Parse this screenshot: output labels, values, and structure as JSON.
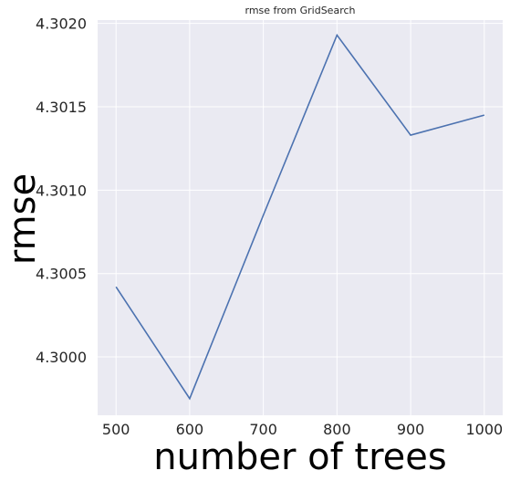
{
  "chart_data": {
    "type": "line",
    "title": "rmse from GridSearch",
    "xlabel": "number of trees",
    "ylabel": "rmse",
    "x": [
      500,
      600,
      700,
      800,
      900,
      1000
    ],
    "series": [
      {
        "name": "",
        "values": [
          4.30042,
          4.29975,
          4.30085,
          4.30193,
          4.30133,
          4.30145
        ]
      }
    ],
    "xticks": [
      500,
      600,
      700,
      800,
      900,
      1000
    ],
    "xtick_labels": [
      "500",
      "600",
      "700",
      "800",
      "900",
      "1000"
    ],
    "yticks": [
      4.3,
      4.3005,
      4.301,
      4.3015,
      4.302
    ],
    "ytick_labels": [
      "4.3000",
      "4.3005",
      "4.3010",
      "4.3015",
      "4.3020"
    ],
    "xlim": [
      475,
      1025
    ],
    "ylim": [
      4.29965,
      4.30202
    ],
    "grid": true,
    "colors": {
      "background": "#eaeaf2",
      "grid": "#ffffff",
      "line": "#4c72b0"
    }
  }
}
